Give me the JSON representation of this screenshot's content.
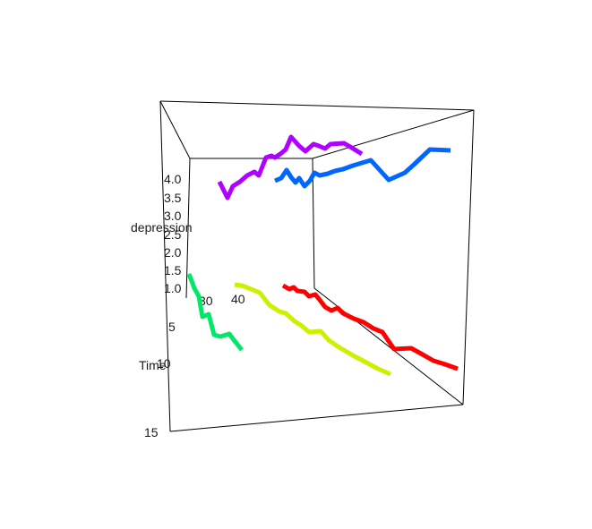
{
  "chart_data": {
    "type": "line",
    "title": "",
    "xlabel": "",
    "ylabel": "depression",
    "zlabel": "Time",
    "y_ticks": [
      "1.0",
      "1.5",
      "2.0",
      "2.5",
      "3.0",
      "3.5",
      "4.0"
    ],
    "x_ticks": [
      "30",
      "40"
    ],
    "time_ticks": [
      "5",
      "10",
      "15"
    ],
    "grid": false,
    "series": [
      {
        "color": "#b000ff"
      },
      {
        "color": "#0066ff"
      },
      {
        "color": "#00e86a"
      },
      {
        "color": "#ccf000"
      },
      {
        "color": "#ff0000"
      }
    ]
  }
}
